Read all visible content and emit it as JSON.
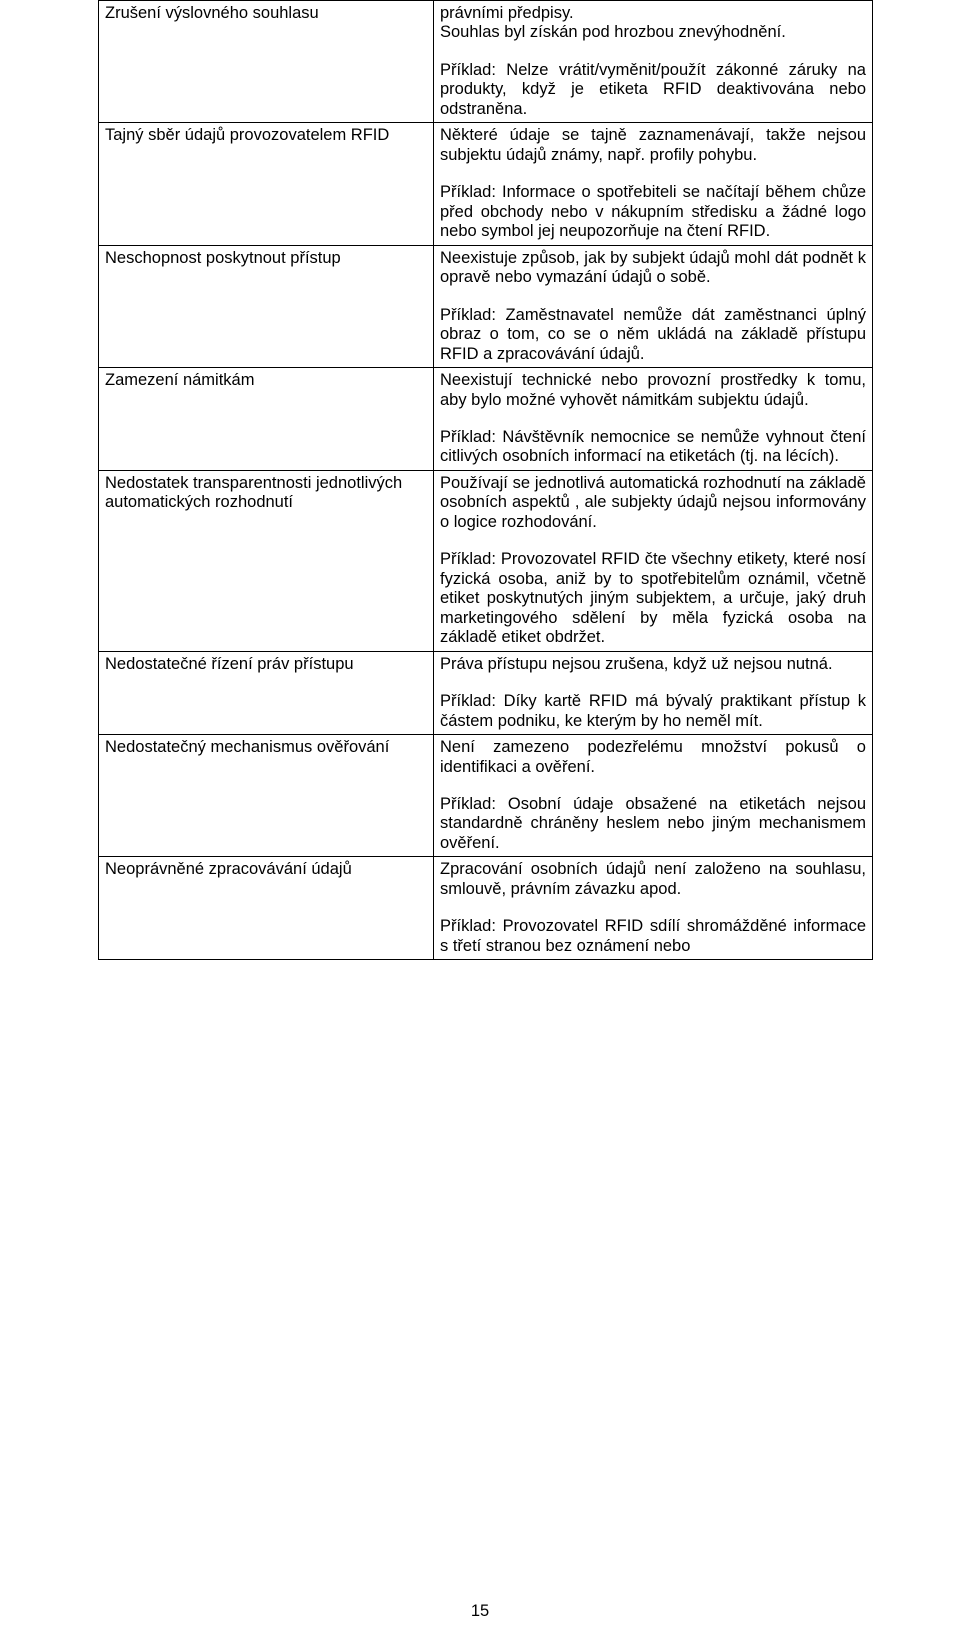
{
  "rows": [
    {
      "left": [
        "Zrušení výslovného souhlasu"
      ],
      "right": [
        "právními předpisy.",
        "Souhlas byl získán pod hrozbou znevýhodnění.",
        "GAP",
        "Příklad: Nelze vrátit/vyměnit/použít zákonné záruky na produkty, když je etiketa RFID deaktivována nebo odstraněna."
      ]
    },
    {
      "left": [
        "Tajný sběr údajů provozovatelem RFID"
      ],
      "right": [
        "Některé údaje se tajně zaznamenávají, takže nejsou subjektu údajů známy, např. profily pohybu.",
        "GAP",
        "Příklad: Informace o spotřebiteli se načítají během chůze před obchody nebo v nákupním středisku a žádné logo nebo symbol jej neupozorňuje na čtení RFID."
      ]
    },
    {
      "left": [
        "Neschopnost poskytnout přístup"
      ],
      "right": [
        "Neexistuje způsob, jak by subjekt údajů mohl dát podnět k opravě nebo vymazání údajů o sobě.",
        "GAP",
        "Příklad: Zaměstnavatel nemůže dát zaměstnanci úplný obraz o tom, co se o něm ukládá na základě přístupu RFID a zpracovávání údajů."
      ]
    },
    {
      "left": [
        "Zamezení námitkám"
      ],
      "right": [
        "Neexistují technické nebo provozní prostředky k tomu, aby bylo možné vyhovět námitkám subjektu údajů.",
        "GAP",
        "Příklad: Návštěvník nemocnice se nemůže vyhnout čtení citlivých osobních informací na etiketách (tj. na lécích)."
      ]
    },
    {
      "left": [
        "Nedostatek transparentnosti jednotlivých automatických rozhodnutí"
      ],
      "right": [
        "Používají se jednotlivá automatická rozhodnutí na základě osobních aspektů , ale subjekty údajů nejsou informovány o logice rozhodování.",
        "GAP",
        "Příklad: Provozovatel RFID čte všechny etikety, které nosí fyzická osoba, aniž by to spotřebitelům oznámil, včetně etiket poskytnutých jiným subjektem, a určuje, jaký druh marketingového sdělení by měla fyzická osoba na základě etiket obdržet."
      ]
    },
    {
      "left": [
        "Nedostatečné řízení práv přístupu"
      ],
      "right": [
        "Práva přístupu nejsou zrušena, když už nejsou nutná.",
        "GAP",
        "Příklad: Díky kartě RFID má bývalý praktikant přístup k částem podniku, ke kterým by ho neměl mít."
      ]
    },
    {
      "left": [
        "Nedostatečný mechanismus ověřování"
      ],
      "right": [
        "Není zamezeno podezřelému množství pokusů o identifikaci a ověření.",
        "GAP",
        "Příklad: Osobní údaje obsažené na etiketách nejsou standardně chráněny heslem nebo jiným mechanismem ověření."
      ]
    },
    {
      "left": [
        "Neoprávněné zpracovávání údajů"
      ],
      "right": [
        "Zpracování osobních údajů není založeno na souhlasu, smlouvě, právním závazku apod.",
        "GAP",
        "Příklad: Provozovatel RFID sdílí shromážděné informace s třetí stranou bez oznámení nebo"
      ]
    }
  ],
  "page_number": "15"
}
